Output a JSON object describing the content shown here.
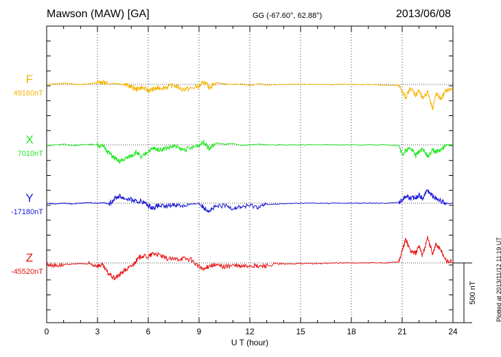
{
  "header": {
    "station": "Mawson (MAW)  [GA]",
    "coords": "GG (-67.60°,  62.88°)",
    "date": "2013/06/08"
  },
  "footer_note": "Plotted at 2013/11/12 11:19 UT",
  "chart_data": {
    "type": "line",
    "title": "Mawson (MAW)  [GA]",
    "xlabel": "U T (hour)",
    "ylabel": "",
    "xlim": [
      0,
      24
    ],
    "x_ticks": [
      0,
      3,
      6,
      9,
      12,
      15,
      18,
      21,
      24
    ],
    "x_tick_labels": [
      "0",
      "3",
      "6",
      "9",
      "12",
      "15",
      "18",
      "21",
      "24"
    ],
    "grid": "dotted vertical lines every 3 h",
    "scale_bar": {
      "label": "500 nT",
      "value_nT": 500
    },
    "series": [
      {
        "name": "F",
        "baseline_label": "49160nT",
        "color": "#f5b400",
        "x": [
          0,
          0.5,
          1,
          1.5,
          2,
          2.5,
          3,
          3.3,
          3.6,
          4,
          4.3,
          4.6,
          5,
          5.3,
          5.6,
          6,
          6.3,
          6.6,
          7,
          7.5,
          8,
          8.5,
          9,
          9.3,
          9.6,
          10,
          10.5,
          11,
          11.5,
          12,
          12.5,
          13,
          14,
          15,
          16,
          17,
          18,
          19,
          20,
          20.8,
          21,
          21.2,
          21.5,
          21.8,
          22,
          22.2,
          22.5,
          22.8,
          23,
          23.3,
          23.6,
          24
        ],
        "y": [
          0,
          5,
          10,
          5,
          0,
          5,
          15,
          20,
          5,
          10,
          5,
          0,
          -20,
          -40,
          -25,
          -50,
          -40,
          -30,
          -25,
          -5,
          -40,
          -35,
          -15,
          20,
          -25,
          15,
          5,
          0,
          5,
          -10,
          5,
          -5,
          0,
          0,
          0,
          0,
          0,
          0,
          -5,
          -10,
          -60,
          -110,
          -30,
          -90,
          -50,
          -120,
          -60,
          -200,
          -80,
          -120,
          -50,
          -40
        ]
      },
      {
        "name": "X",
        "baseline_label": "7010nT",
        "color": "#22e822",
        "x": [
          0,
          0.5,
          1,
          1.5,
          2,
          2.5,
          3,
          3.4,
          3.7,
          4,
          4.3,
          4.6,
          5,
          5.3,
          5.6,
          6,
          6.3,
          6.6,
          7,
          7.5,
          8,
          8.5,
          9,
          9.3,
          9.6,
          10,
          10.5,
          11,
          11.5,
          12,
          12.5,
          13,
          14,
          15,
          16,
          17,
          18,
          19,
          20,
          20.8,
          21,
          21.2,
          21.5,
          21.8,
          22,
          22.2,
          22.5,
          22.8,
          23,
          23.3,
          23.6,
          24
        ],
        "y": [
          -5,
          0,
          5,
          -5,
          0,
          5,
          0,
          -20,
          -70,
          -110,
          -140,
          -120,
          -90,
          -60,
          -110,
          -50,
          -30,
          -40,
          -30,
          -10,
          -40,
          -30,
          0,
          25,
          -35,
          15,
          5,
          10,
          -5,
          0,
          5,
          0,
          0,
          0,
          0,
          0,
          0,
          0,
          0,
          -5,
          -80,
          -50,
          -20,
          -90,
          -50,
          -30,
          -100,
          -40,
          -60,
          -40,
          0,
          0
        ]
      },
      {
        "name": "Y",
        "baseline_label": "-17180nT",
        "color": "#1a1ad6",
        "x": [
          0,
          0.5,
          1,
          1.5,
          2,
          2.5,
          3,
          3.4,
          3.7,
          4,
          4.3,
          4.6,
          5,
          5.3,
          5.6,
          6,
          6.3,
          6.6,
          7,
          7.5,
          8,
          8.5,
          9,
          9.3,
          9.6,
          10,
          10.5,
          11,
          11.5,
          12,
          12.5,
          13,
          14,
          15,
          16,
          17,
          18,
          19,
          20,
          20.8,
          21,
          21.2,
          21.5,
          21.8,
          22,
          22.2,
          22.5,
          22.8,
          23,
          23.3,
          23.6,
          24
        ],
        "y": [
          0,
          -5,
          0,
          -5,
          0,
          5,
          0,
          5,
          -10,
          40,
          60,
          40,
          30,
          10,
          20,
          -20,
          -40,
          -20,
          -30,
          -10,
          -20,
          -10,
          0,
          -40,
          -60,
          -30,
          -20,
          -40,
          -30,
          -20,
          -30,
          -10,
          -5,
          0,
          0,
          0,
          0,
          0,
          0,
          5,
          30,
          60,
          40,
          50,
          70,
          40,
          110,
          60,
          40,
          20,
          0,
          0
        ]
      },
      {
        "name": "Z",
        "baseline_label": "-45520nT",
        "color": "#e81010",
        "x": [
          0,
          0.5,
          1,
          1.5,
          2,
          2.5,
          3,
          3.3,
          3.6,
          4,
          4.3,
          4.6,
          5,
          5.3,
          5.6,
          6,
          6.3,
          6.6,
          7,
          7.5,
          8,
          8.5,
          9,
          9.3,
          9.6,
          10,
          10.5,
          11,
          11.5,
          12,
          12.5,
          13,
          14,
          15,
          16,
          17,
          18,
          19,
          20,
          20.8,
          21,
          21.2,
          21.5,
          21.8,
          22,
          22.2,
          22.5,
          22.8,
          23,
          23.3,
          23.6,
          24
        ],
        "y": [
          -10,
          -20,
          -15,
          -10,
          -5,
          -10,
          -20,
          -20,
          -80,
          -130,
          -100,
          -60,
          -30,
          20,
          60,
          50,
          80,
          70,
          40,
          30,
          40,
          30,
          -30,
          -60,
          -20,
          -20,
          -30,
          -20,
          -30,
          -20,
          -30,
          -20,
          -10,
          -5,
          -5,
          0,
          0,
          0,
          0,
          10,
          100,
          200,
          100,
          80,
          150,
          60,
          210,
          80,
          160,
          100,
          20,
          10
        ]
      }
    ]
  }
}
